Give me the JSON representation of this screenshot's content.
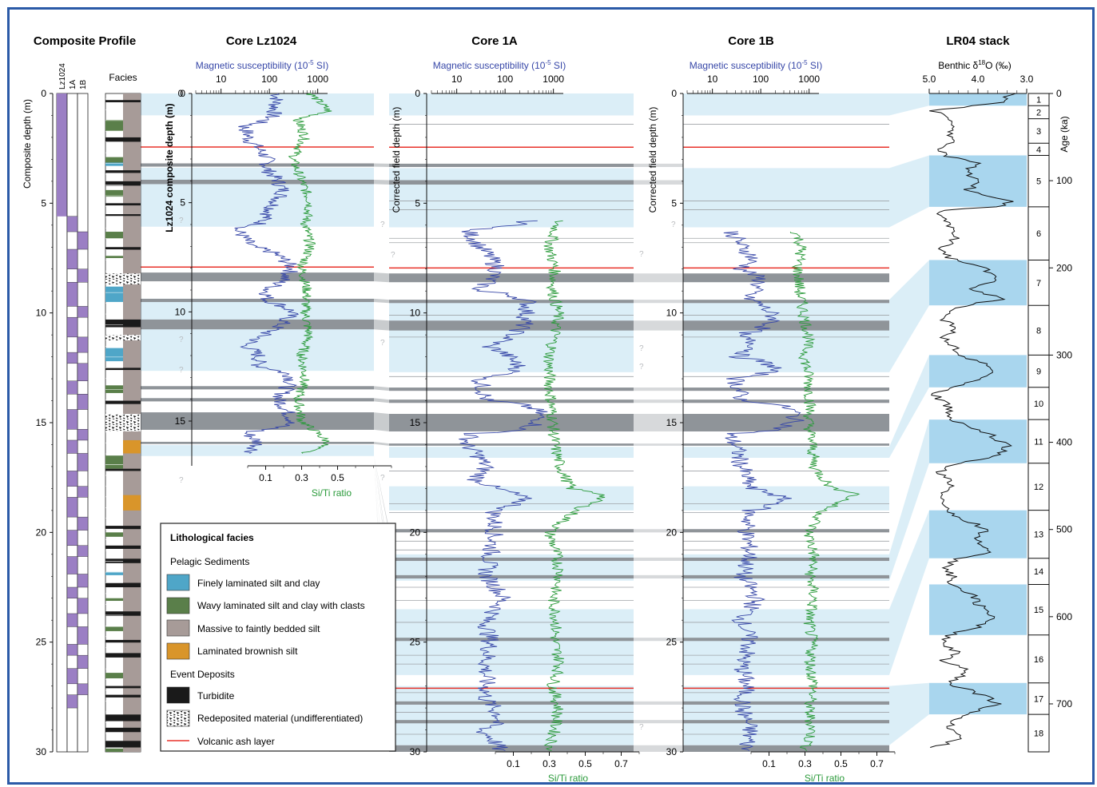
{
  "titles": {
    "composite": "Composite Profile",
    "lz": "Core Lz1024",
    "c1a": "Core 1A",
    "c1b": "Core 1B",
    "lr04": "LR04 stack"
  },
  "axes": {
    "composite_ylabel": "Composite depth (m)",
    "lz_ylabel": "Lz1024 composite depth (m)",
    "c1a_ylabel": "Corrected field depth (m)",
    "c1b_ylabel": "Corrected field depth (m)",
    "age_label": "Age (ka)",
    "magsus_label": "Magnetic susceptibility (10",
    "magsus_exp": "-5",
    "magsus_unit": " SI)",
    "siti_label": "Si/Ti ratio",
    "benthic_label": "Benthic δ",
    "benthic_18": "18",
    "benthic_unit": "O (‰)",
    "facies_label": "Facies",
    "col_lz": "Lz1024",
    "col_1a": "1A",
    "col_1b": "1B",
    "question": "?"
  },
  "depth_ticks": [
    "0",
    "5",
    "10",
    "15",
    "20",
    "25",
    "30"
  ],
  "lz_depth_ticks": [
    "0",
    "5",
    "10",
    "15"
  ],
  "magsus_ticks": [
    "10",
    "100",
    "1000"
  ],
  "siti_ticks": [
    "0.1",
    "0.3",
    "0.5",
    "0.7"
  ],
  "siti_ticks_lz": [
    "0.1",
    "0.3",
    "0.5"
  ],
  "benthic_ticks": [
    "5.0",
    "4.0",
    "3.0"
  ],
  "age_ticks": [
    "0",
    "100",
    "200",
    "300",
    "400",
    "500",
    "600",
    "700"
  ],
  "mis_labels": [
    "1",
    "2",
    "3",
    "4",
    "5",
    "6",
    "7",
    "8",
    "9",
    "10",
    "11",
    "12",
    "13",
    "14",
    "15",
    "16",
    "17",
    "18"
  ],
  "legend": {
    "title": "Lithological facies",
    "pelagic": "Pelagic Sediments",
    "event": "Event Deposits",
    "items": [
      {
        "label": "Finely laminated silt and clay",
        "color": "#4fa6c8"
      },
      {
        "label": "Wavy laminated silt and clay with clasts",
        "color": "#5a7f4a"
      },
      {
        "label": "Massive to faintly bedded silt",
        "color": "#a79b98"
      },
      {
        "label": "Laminated brownish silt",
        "color": "#d9952a"
      },
      {
        "label": "Turbidite",
        "color": "#1a1a1a"
      },
      {
        "label": "Redeposited material (undifferentiated)",
        "color": "pattern"
      },
      {
        "label": "Volcanic ash layer",
        "color": "#e8322a"
      }
    ]
  },
  "colors": {
    "magsus": "#3848a8",
    "siti": "#2a9a3a",
    "band": "#dbeef7",
    "lr04_band": "#a9d6ee",
    "gray_layer": "#8f9499",
    "ash": "#e8322a",
    "purple": "#9b7fc4",
    "border": "#2b5aa7"
  },
  "chart_data": {
    "type": "line",
    "depth_range_m": [
      0,
      30
    ],
    "age_range_ka": [
      0,
      755
    ],
    "magsus_scale": "log",
    "magsus_range": [
      3,
      1600
    ],
    "siti_range": [
      0,
      0.8
    ],
    "benthic_range_permil": [
      5.0,
      3.0
    ],
    "correlation_bands_m": [
      [
        0,
        1.0
      ],
      [
        3.4,
        6.1
      ],
      [
        9.4,
        12.7
      ],
      [
        16.1,
        16.6
      ],
      [
        17.9,
        19.0
      ],
      [
        21.0,
        22.2
      ],
      [
        23.5,
        26.5
      ],
      [
        27.0,
        29.7
      ]
    ],
    "turbidites_m": [
      [
        3.2,
        3.35
      ],
      [
        3.95,
        4.15
      ],
      [
        8.2,
        8.6
      ],
      [
        9.4,
        9.55
      ],
      [
        10.35,
        10.8
      ],
      [
        13.4,
        13.55
      ],
      [
        13.95,
        14.1
      ],
      [
        14.6,
        15.4
      ],
      [
        15.95,
        16.05
      ],
      [
        19.85,
        20.0
      ],
      [
        21.15,
        21.3
      ],
      [
        21.95,
        22.1
      ],
      [
        24.8,
        24.95
      ],
      [
        27.7,
        27.85
      ],
      [
        28.55,
        28.7
      ],
      [
        29.7,
        30.0
      ]
    ],
    "ash_layers_m": [
      2.45,
      7.95,
      27.1
    ],
    "lr04_glacial_bands_ka": [
      [
        0,
        14
      ],
      [
        71,
        130
      ],
      [
        191,
        243
      ],
      [
        300,
        337
      ],
      [
        374,
        424
      ],
      [
        478,
        533
      ],
      [
        563,
        621
      ],
      [
        676,
        712
      ]
    ],
    "mis_boundaries_ka": [
      0,
      14,
      29,
      57,
      71,
      130,
      191,
      243,
      300,
      337,
      374,
      424,
      478,
      533,
      563,
      621,
      676,
      712,
      755
    ],
    "lr04_benthic_d18O": [
      [
        0,
        3.3
      ],
      [
        10,
        3.5
      ],
      [
        20,
        4.9
      ],
      [
        29,
        4.6
      ],
      [
        40,
        4.5
      ],
      [
        57,
        4.6
      ],
      [
        65,
        4.8
      ],
      [
        71,
        4.7
      ],
      [
        80,
        4.0
      ],
      [
        90,
        4.3
      ],
      [
        100,
        3.9
      ],
      [
        110,
        4.2
      ],
      [
        118,
        3.8
      ],
      [
        125,
        3.3
      ],
      [
        130,
        3.7
      ],
      [
        135,
        4.9
      ],
      [
        150,
        4.6
      ],
      [
        165,
        4.4
      ],
      [
        180,
        4.8
      ],
      [
        191,
        4.5
      ],
      [
        200,
        3.8
      ],
      [
        215,
        3.7
      ],
      [
        225,
        4.1
      ],
      [
        236,
        3.5
      ],
      [
        243,
        4.3
      ],
      [
        255,
        4.8
      ],
      [
        270,
        4.4
      ],
      [
        280,
        4.7
      ],
      [
        300,
        4.3
      ],
      [
        310,
        3.9
      ],
      [
        320,
        3.6
      ],
      [
        337,
        4.5
      ],
      [
        345,
        4.9
      ],
      [
        360,
        4.6
      ],
      [
        374,
        4.6
      ],
      [
        390,
        3.8
      ],
      [
        405,
        3.4
      ],
      [
        415,
        3.6
      ],
      [
        424,
        4.4
      ],
      [
        434,
        4.8
      ],
      [
        450,
        4.5
      ],
      [
        460,
        4.7
      ],
      [
        478,
        4.7
      ],
      [
        490,
        4.2
      ],
      [
        500,
        3.8
      ],
      [
        510,
        4.1
      ],
      [
        525,
        3.7
      ],
      [
        533,
        4.4
      ],
      [
        543,
        4.7
      ],
      [
        555,
        4.5
      ],
      [
        563,
        4.6
      ],
      [
        575,
        4.1
      ],
      [
        585,
        4.0
      ],
      [
        600,
        3.7
      ],
      [
        612,
        4.0
      ],
      [
        621,
        4.6
      ],
      [
        630,
        4.8
      ],
      [
        640,
        4.4
      ],
      [
        650,
        4.7
      ],
      [
        663,
        4.2
      ],
      [
        676,
        4.6
      ],
      [
        690,
        3.9
      ],
      [
        700,
        3.6
      ],
      [
        712,
        4.3
      ],
      [
        725,
        4.6
      ],
      [
        738,
        4.3
      ],
      [
        750,
        4.9
      ]
    ],
    "lz1024_magsus_anchor": [
      [
        0,
        150
      ],
      [
        1,
        120
      ],
      [
        1.5,
        30
      ],
      [
        2.2,
        40
      ],
      [
        3,
        90
      ],
      [
        3.5,
        90
      ],
      [
        4,
        150
      ],
      [
        4.5,
        200
      ],
      [
        5,
        130
      ],
      [
        6,
        60
      ],
      [
        6.2,
        20
      ],
      [
        7,
        40
      ],
      [
        8,
        300
      ],
      [
        9,
        90
      ],
      [
        9.5,
        90
      ],
      [
        10,
        300
      ],
      [
        11,
        80
      ],
      [
        11.5,
        30
      ],
      [
        12,
        60
      ],
      [
        12.5,
        60
      ],
      [
        13,
        300
      ],
      [
        14,
        150
      ],
      [
        15,
        300
      ],
      [
        15.5,
        30
      ],
      [
        16,
        60
      ],
      [
        16.5,
        40
      ]
    ],
    "lz1024_siti_anchor": [
      [
        0,
        0.35
      ],
      [
        0.8,
        0.45
      ],
      [
        1.2,
        0.28
      ],
      [
        2,
        0.32
      ],
      [
        3,
        0.25
      ],
      [
        4,
        0.3
      ],
      [
        5,
        0.35
      ],
      [
        6,
        0.32
      ],
      [
        7,
        0.35
      ],
      [
        8,
        0.3
      ],
      [
        9,
        0.33
      ],
      [
        10,
        0.32
      ],
      [
        11,
        0.34
      ],
      [
        12,
        0.3
      ],
      [
        13,
        0.32
      ],
      [
        14,
        0.28
      ],
      [
        15,
        0.3
      ],
      [
        15.5,
        0.38
      ],
      [
        16,
        0.45
      ],
      [
        16.5,
        0.3
      ]
    ],
    "core1a_magsus_anchor": [
      [
        5.8,
        300
      ],
      [
        6.2,
        15
      ],
      [
        7,
        30
      ],
      [
        8,
        70
      ],
      [
        9,
        25
      ],
      [
        9.5,
        300
      ],
      [
        10.5,
        250
      ],
      [
        11.5,
        40
      ],
      [
        12.5,
        200
      ],
      [
        13,
        30
      ],
      [
        14,
        40
      ],
      [
        14.5,
        500
      ],
      [
        15,
        500
      ],
      [
        15.5,
        20
      ],
      [
        16,
        15
      ],
      [
        17,
        40
      ],
      [
        17.6,
        25
      ],
      [
        18,
        60
      ],
      [
        18.5,
        250
      ],
      [
        19,
        60
      ],
      [
        20,
        60
      ],
      [
        21,
        50
      ],
      [
        22,
        40
      ],
      [
        23,
        90
      ],
      [
        24,
        40
      ],
      [
        25,
        50
      ],
      [
        26,
        40
      ],
      [
        27,
        40
      ],
      [
        27.6,
        40
      ],
      [
        28.5,
        80
      ],
      [
        29,
        30
      ],
      [
        29.5,
        60
      ],
      [
        30,
        80
      ]
    ],
    "core1a_siti_anchor": [
      [
        5.8,
        0.35
      ],
      [
        7,
        0.3
      ],
      [
        8,
        0.33
      ],
      [
        9,
        0.32
      ],
      [
        10,
        0.35
      ],
      [
        11,
        0.33
      ],
      [
        12,
        0.3
      ],
      [
        13,
        0.3
      ],
      [
        14,
        0.31
      ],
      [
        15,
        0.32
      ],
      [
        16,
        0.33
      ],
      [
        17,
        0.36
      ],
      [
        18,
        0.42
      ],
      [
        18.3,
        0.62
      ],
      [
        19,
        0.45
      ],
      [
        20,
        0.3
      ],
      [
        21,
        0.34
      ],
      [
        22,
        0.36
      ],
      [
        23,
        0.32
      ],
      [
        24,
        0.34
      ],
      [
        25,
        0.33
      ],
      [
        26,
        0.36
      ],
      [
        27,
        0.32
      ],
      [
        28,
        0.35
      ],
      [
        29,
        0.33
      ],
      [
        30,
        0.3
      ]
    ],
    "core1b_magsus_anchor": [
      [
        6.3,
        25
      ],
      [
        7,
        40
      ],
      [
        7.5,
        70
      ],
      [
        8,
        40
      ],
      [
        8.5,
        100
      ],
      [
        9.3,
        50
      ],
      [
        10.3,
        200
      ],
      [
        11,
        30
      ],
      [
        11.5,
        80
      ],
      [
        12,
        30
      ],
      [
        12.5,
        200
      ],
      [
        13,
        30
      ],
      [
        14,
        40
      ],
      [
        14.5,
        500
      ],
      [
        15,
        500
      ],
      [
        15.5,
        20
      ],
      [
        16,
        30
      ],
      [
        17,
        40
      ],
      [
        18,
        60
      ],
      [
        18.5,
        300
      ],
      [
        19,
        60
      ],
      [
        20,
        50
      ],
      [
        21,
        60
      ],
      [
        22,
        40
      ],
      [
        23,
        80
      ],
      [
        24,
        40
      ],
      [
        25,
        60
      ],
      [
        26,
        40
      ],
      [
        27,
        50
      ],
      [
        28,
        40
      ],
      [
        29,
        60
      ],
      [
        30,
        50
      ]
    ],
    "core1b_siti_anchor": [
      [
        6.3,
        0.25
      ],
      [
        7,
        0.28
      ],
      [
        8,
        0.26
      ],
      [
        9,
        0.27
      ],
      [
        10.3,
        0.3
      ],
      [
        11,
        0.32
      ],
      [
        12,
        0.3
      ],
      [
        13,
        0.32
      ],
      [
        14,
        0.33
      ],
      [
        15,
        0.32
      ],
      [
        16,
        0.34
      ],
      [
        17,
        0.35
      ],
      [
        18,
        0.45
      ],
      [
        18.2,
        0.6
      ],
      [
        19,
        0.4
      ],
      [
        20,
        0.32
      ],
      [
        21,
        0.35
      ],
      [
        22,
        0.33
      ],
      [
        23,
        0.35
      ],
      [
        24,
        0.32
      ],
      [
        25,
        0.34
      ],
      [
        26,
        0.33
      ],
      [
        27,
        0.35
      ],
      [
        28,
        0.32
      ],
      [
        29,
        0.34
      ],
      [
        30,
        0.3
      ]
    ]
  }
}
